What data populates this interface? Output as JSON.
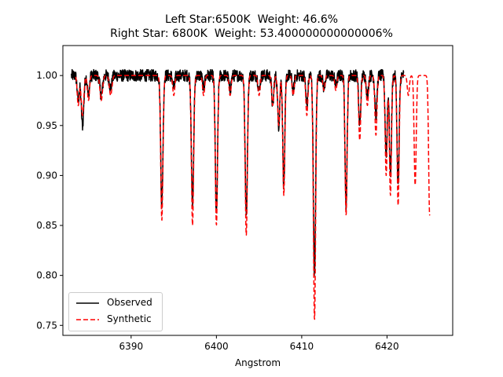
{
  "chart_data": {
    "type": "line",
    "title_lines": [
      "Left Star:6500K  Weight: 46.6%",
      "Right Star: 6800K  Weight: 53.400000000000006%"
    ],
    "xlabel": "Angstrom",
    "ylabel": "",
    "xlim": [
      6382.0,
      6427.7
    ],
    "ylim": [
      0.74,
      1.03
    ],
    "xticks": [
      6390,
      6400,
      6410,
      6420
    ],
    "yticks": [
      0.75,
      0.8,
      0.85,
      0.9,
      0.95,
      1.0
    ],
    "legend_position": "lower left",
    "baseline": 1.0,
    "series": [
      {
        "name": "Observed",
        "color": "#000000",
        "style": "solid",
        "x_range": [
          6383.0,
          6422.0
        ],
        "noise": 0.006,
        "lines": [
          {
            "center": 6383.8,
            "depth": 0.025,
            "width": 0.12
          },
          {
            "center": 6384.3,
            "depth": 0.05,
            "width": 0.15
          },
          {
            "center": 6385.0,
            "depth": 0.02,
            "width": 0.12
          },
          {
            "center": 6386.5,
            "depth": 0.02,
            "width": 0.15
          },
          {
            "center": 6387.6,
            "depth": 0.012,
            "width": 0.15
          },
          {
            "center": 6393.6,
            "depth": 0.13,
            "width": 0.13
          },
          {
            "center": 6395.0,
            "depth": 0.012,
            "width": 0.12
          },
          {
            "center": 6397.2,
            "depth": 0.13,
            "width": 0.13
          },
          {
            "center": 6398.5,
            "depth": 0.012,
            "width": 0.12
          },
          {
            "center": 6400.0,
            "depth": 0.14,
            "width": 0.13
          },
          {
            "center": 6401.6,
            "depth": 0.015,
            "width": 0.12
          },
          {
            "center": 6403.5,
            "depth": 0.14,
            "width": 0.13
          },
          {
            "center": 6405.0,
            "depth": 0.015,
            "width": 0.12
          },
          {
            "center": 6406.6,
            "depth": 0.03,
            "width": 0.12
          },
          {
            "center": 6407.3,
            "depth": 0.05,
            "width": 0.12
          },
          {
            "center": 6407.9,
            "depth": 0.11,
            "width": 0.12
          },
          {
            "center": 6409.0,
            "depth": 0.015,
            "width": 0.12
          },
          {
            "center": 6410.6,
            "depth": 0.03,
            "width": 0.12
          },
          {
            "center": 6411.5,
            "depth": 0.2,
            "width": 0.13
          },
          {
            "center": 6412.6,
            "depth": 0.012,
            "width": 0.12
          },
          {
            "center": 6414.0,
            "depth": 0.01,
            "width": 0.12
          },
          {
            "center": 6415.2,
            "depth": 0.13,
            "width": 0.12
          },
          {
            "center": 6416.8,
            "depth": 0.05,
            "width": 0.12
          },
          {
            "center": 6417.7,
            "depth": 0.02,
            "width": 0.12
          },
          {
            "center": 6418.7,
            "depth": 0.04,
            "width": 0.12
          },
          {
            "center": 6419.9,
            "depth": 0.08,
            "width": 0.12
          },
          {
            "center": 6420.4,
            "depth": 0.1,
            "width": 0.12
          },
          {
            "center": 6421.3,
            "depth": 0.11,
            "width": 0.12
          }
        ]
      },
      {
        "name": "Synthetic",
        "color": "#ff0000",
        "style": "dashed",
        "x_range": [
          6383.5,
          6425.0
        ],
        "noise": 0.0,
        "lines": [
          {
            "center": 6383.8,
            "depth": 0.03,
            "width": 0.12
          },
          {
            "center": 6384.3,
            "depth": 0.04,
            "width": 0.15
          },
          {
            "center": 6385.0,
            "depth": 0.025,
            "width": 0.12
          },
          {
            "center": 6386.5,
            "depth": 0.025,
            "width": 0.15
          },
          {
            "center": 6387.6,
            "depth": 0.02,
            "width": 0.15
          },
          {
            "center": 6393.6,
            "depth": 0.145,
            "width": 0.13
          },
          {
            "center": 6395.0,
            "depth": 0.02,
            "width": 0.12
          },
          {
            "center": 6397.2,
            "depth": 0.15,
            "width": 0.13
          },
          {
            "center": 6398.5,
            "depth": 0.02,
            "width": 0.12
          },
          {
            "center": 6400.0,
            "depth": 0.15,
            "width": 0.13
          },
          {
            "center": 6401.6,
            "depth": 0.02,
            "width": 0.12
          },
          {
            "center": 6403.5,
            "depth": 0.16,
            "width": 0.13
          },
          {
            "center": 6405.0,
            "depth": 0.02,
            "width": 0.12
          },
          {
            "center": 6406.6,
            "depth": 0.03,
            "width": 0.12
          },
          {
            "center": 6407.3,
            "depth": 0.05,
            "width": 0.12
          },
          {
            "center": 6407.9,
            "depth": 0.12,
            "width": 0.12
          },
          {
            "center": 6409.0,
            "depth": 0.02,
            "width": 0.12
          },
          {
            "center": 6410.6,
            "depth": 0.04,
            "width": 0.12
          },
          {
            "center": 6411.5,
            "depth": 0.245,
            "width": 0.13
          },
          {
            "center": 6412.6,
            "depth": 0.015,
            "width": 0.12
          },
          {
            "center": 6414.0,
            "depth": 0.015,
            "width": 0.12
          },
          {
            "center": 6415.2,
            "depth": 0.14,
            "width": 0.12
          },
          {
            "center": 6416.8,
            "depth": 0.065,
            "width": 0.12
          },
          {
            "center": 6417.7,
            "depth": 0.03,
            "width": 0.12
          },
          {
            "center": 6418.7,
            "depth": 0.06,
            "width": 0.12
          },
          {
            "center": 6419.9,
            "depth": 0.1,
            "width": 0.12
          },
          {
            "center": 6420.4,
            "depth": 0.12,
            "width": 0.12
          },
          {
            "center": 6421.3,
            "depth": 0.13,
            "width": 0.12
          },
          {
            "center": 6422.5,
            "depth": 0.02,
            "width": 0.12
          },
          {
            "center": 6423.3,
            "depth": 0.11,
            "width": 0.12
          },
          {
            "center": 6425.0,
            "depth": 0.14,
            "width": 0.12
          }
        ]
      }
    ]
  }
}
